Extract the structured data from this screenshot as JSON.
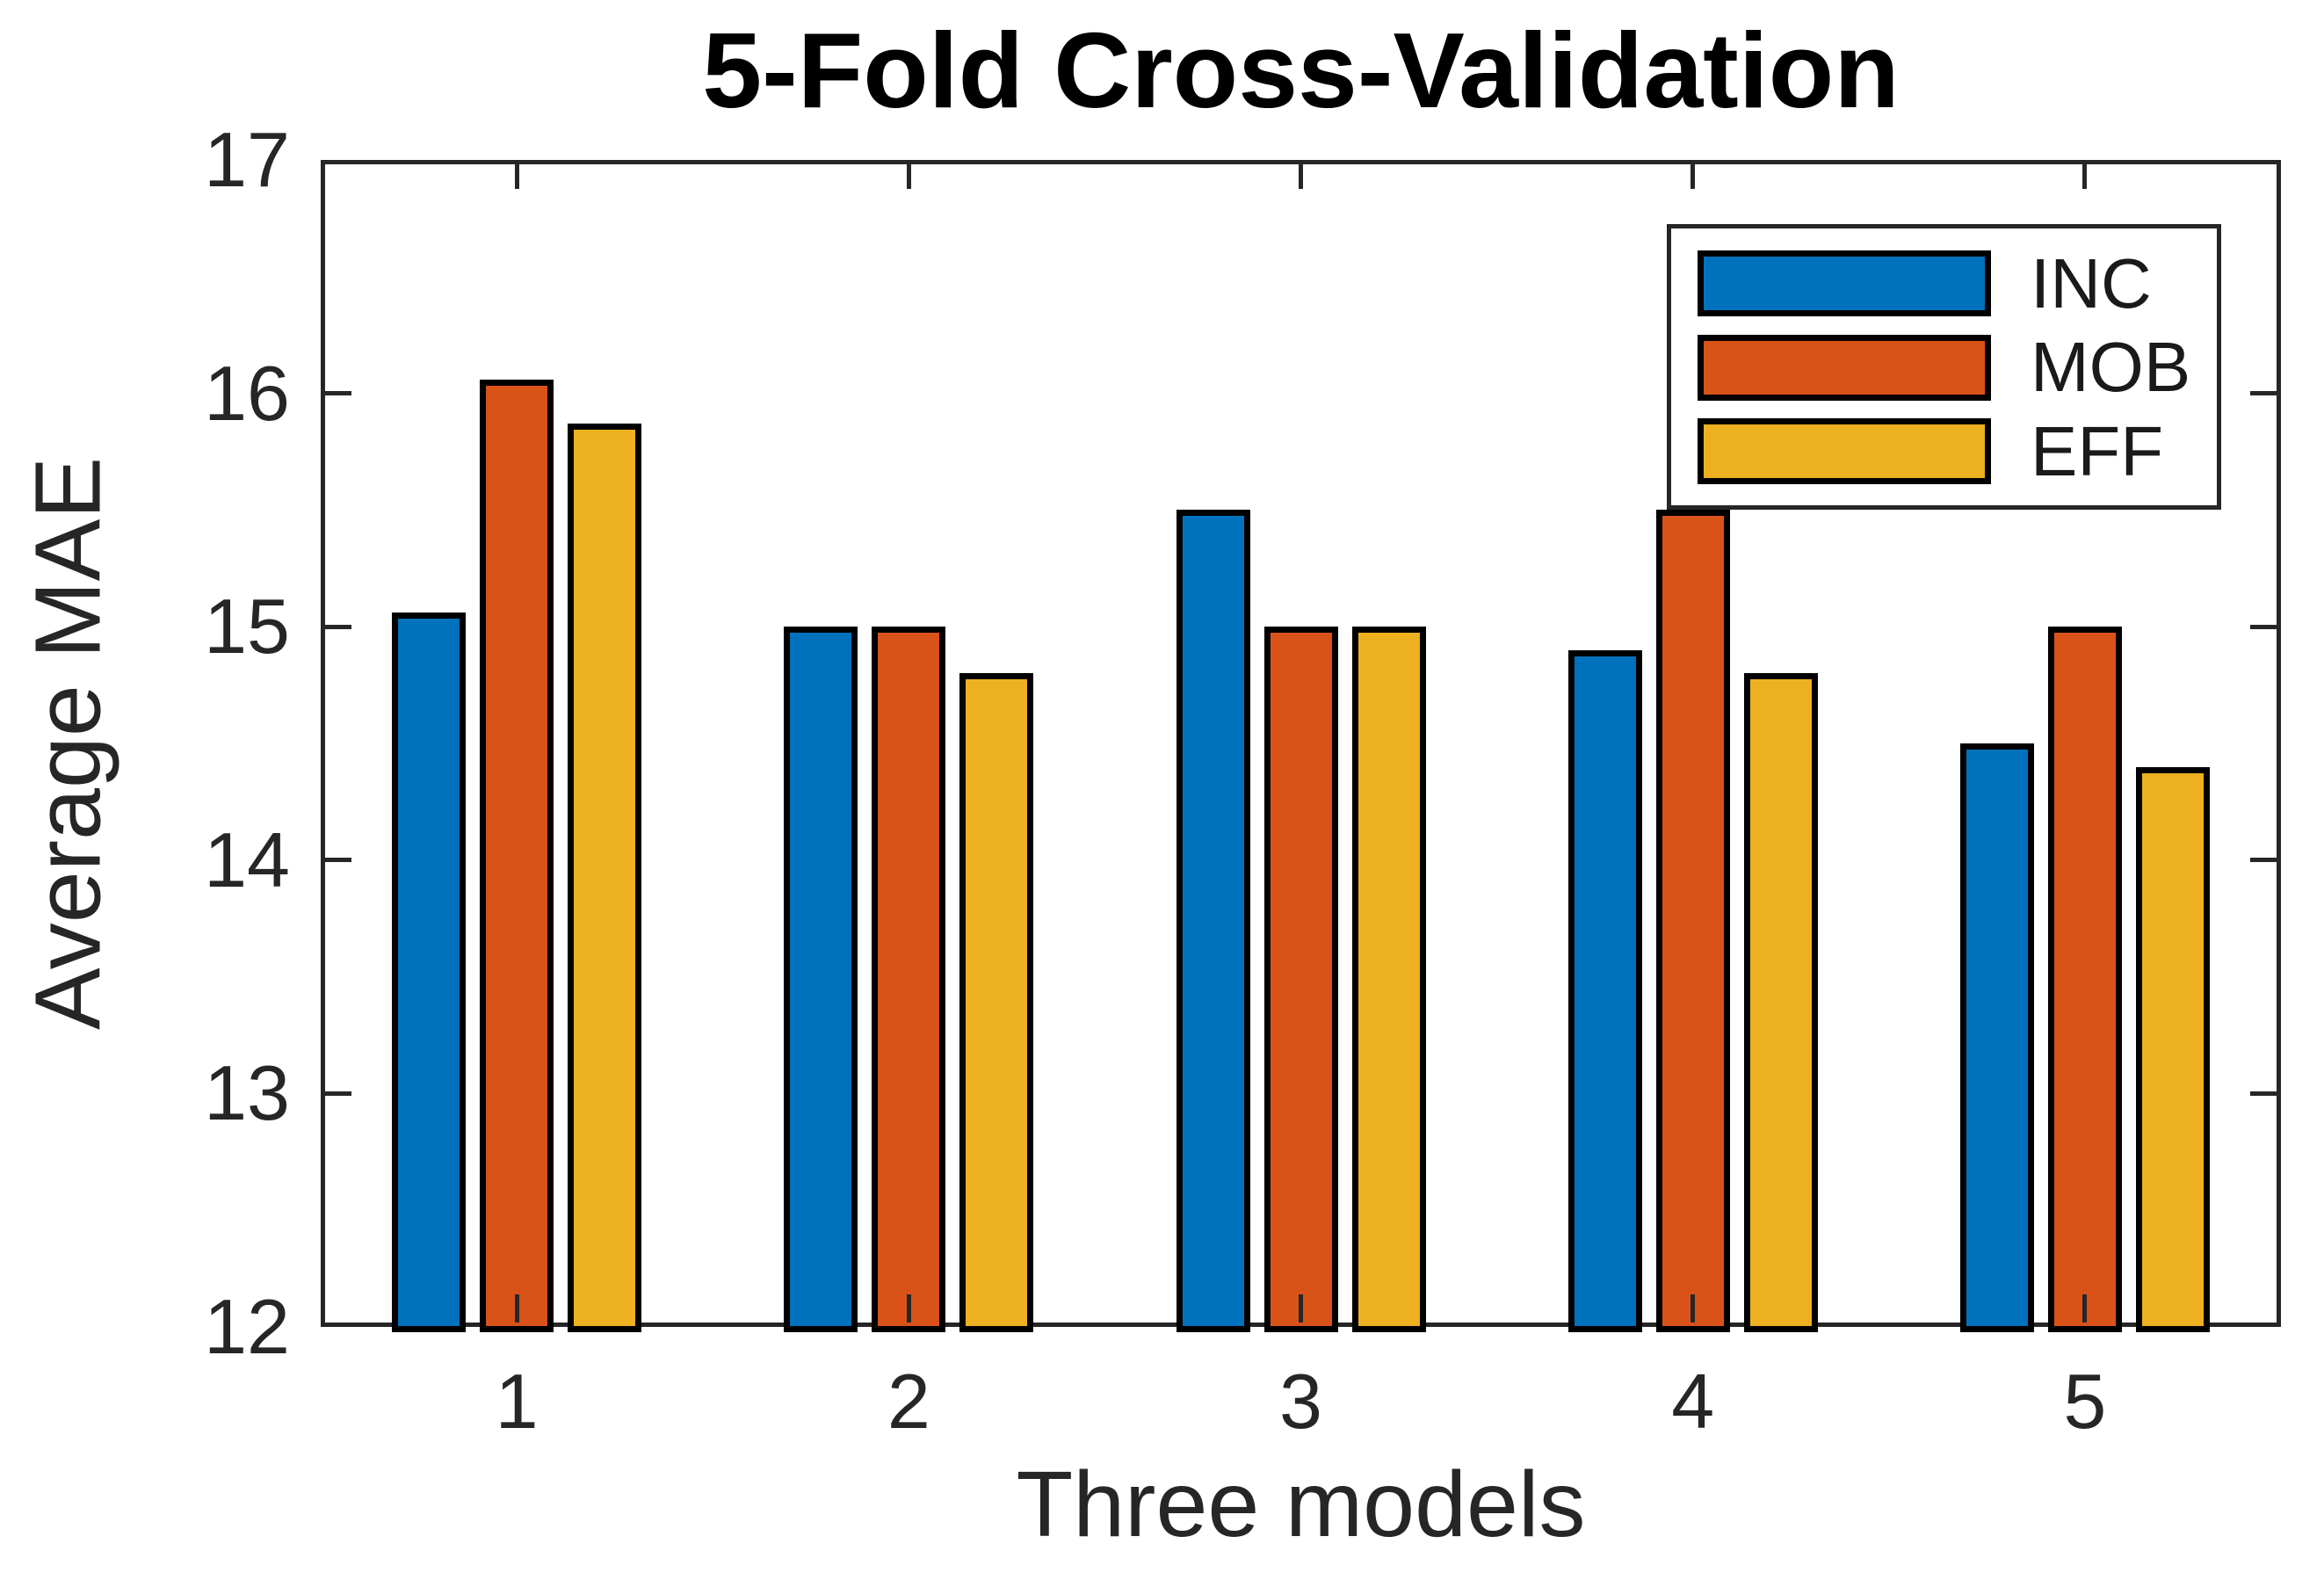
{
  "chart_data": {
    "type": "bar",
    "title": "5-Fold Cross-Validation",
    "xlabel": "Three models",
    "ylabel": "Average MAE",
    "categories": [
      "1",
      "2",
      "3",
      "4",
      "5"
    ],
    "series": [
      {
        "name": "INC",
        "color": "#0072BD",
        "values": [
          15.06,
          15.0,
          15.5,
          14.9,
          14.5
        ]
      },
      {
        "name": "MOB",
        "color": "#D95319",
        "values": [
          16.06,
          15.0,
          15.0,
          15.5,
          15.0
        ]
      },
      {
        "name": "EFF",
        "color": "#EDB120",
        "values": [
          15.87,
          14.8,
          15.0,
          14.8,
          14.4
        ]
      }
    ],
    "ylim": [
      12,
      17
    ],
    "yticks": [
      "12",
      "13",
      "14",
      "15",
      "16",
      "17"
    ],
    "grid": false,
    "legend": {
      "position": "top-right-inside",
      "entries": [
        "INC",
        "MOB",
        "EFF"
      ]
    }
  },
  "style": {
    "axis_color": "#262626",
    "bar_edge_color": "#000000",
    "title_color": "#000000",
    "background": "#ffffff"
  }
}
